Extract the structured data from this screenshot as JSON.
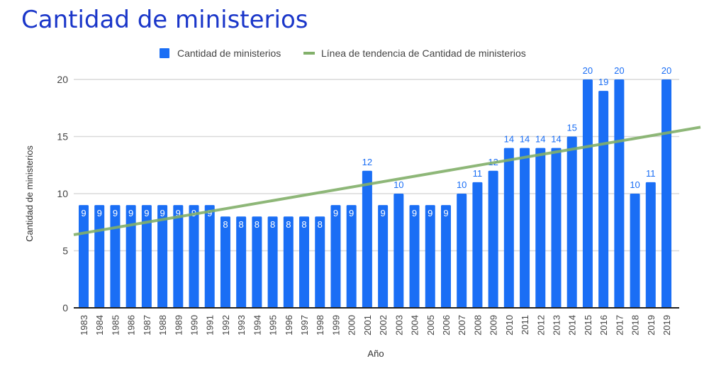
{
  "chart_data": {
    "type": "bar",
    "title": "Cantidad de ministerios",
    "xlabel": "Año",
    "ylabel": "Cantidad de ministerios",
    "ylim": [
      0,
      20
    ],
    "yticks": [
      0,
      5,
      10,
      15,
      20
    ],
    "grid": true,
    "legend_placement": "top",
    "categories": [
      "1983",
      "1984",
      "1985",
      "1986",
      "1987",
      "1988",
      "1989",
      "1990",
      "1991",
      "1992",
      "1993",
      "1994",
      "1995",
      "1996",
      "1997",
      "1998",
      "1999",
      "2000",
      "2001",
      "2002",
      "2003",
      "2004",
      "2005",
      "2006",
      "2007",
      "2008",
      "2009",
      "2010",
      "2011",
      "2012",
      "2013",
      "2014",
      "2015",
      "2016",
      "2017",
      "2018",
      "2019",
      "2019"
    ],
    "series": [
      {
        "name": "Cantidad de ministerios",
        "color": "#1a6ef5",
        "values": [
          9,
          9,
          9,
          9,
          9,
          9,
          9,
          9,
          9,
          8,
          8,
          8,
          8,
          8,
          8,
          8,
          9,
          9,
          12,
          9,
          10,
          9,
          9,
          9,
          10,
          11,
          12,
          14,
          14,
          14,
          14,
          15,
          20,
          19,
          20,
          10,
          11,
          20
        ]
      }
    ],
    "trendline": {
      "name": "Línea de tendencia de Cantidad de ministerios",
      "color": "#82b06a",
      "start": 6.4,
      "end": 15.5
    }
  }
}
